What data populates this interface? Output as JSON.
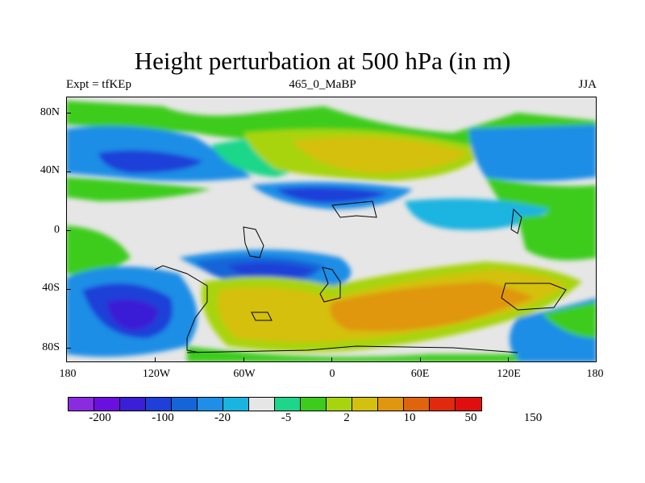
{
  "title": "Height perturbation at 500 hPa (in m)",
  "subtitle_left": "Expt = tfKEp",
  "subtitle_center": "465_0_MaBP",
  "subtitle_right": "JJA",
  "map": {
    "type": "filled-contour",
    "projection": "cylindrical-equidistant",
    "lon_range": [
      -180,
      180
    ],
    "lat_range": [
      -90,
      90
    ],
    "coastlines": true,
    "y_labels": [
      "80N",
      "40N",
      "0",
      "40S",
      "80S"
    ],
    "x_labels": [
      "180",
      "120W",
      "60W",
      "0",
      "60E",
      "120E",
      "180"
    ]
  },
  "colorbar": {
    "colors": [
      "#8a2be2",
      "#6a0fe0",
      "#3a1fd6",
      "#1e3fd8",
      "#1565d8",
      "#1e8ee6",
      "#1ab4e0",
      "#e6e6e6",
      "#1ed68a",
      "#3ccc1e",
      "#a8d40e",
      "#d4c00e",
      "#e0960e",
      "#e0640e",
      "#e02a0e",
      "#e00e0e"
    ],
    "labels": [
      "-200",
      "-100",
      "-20",
      "-5",
      "2",
      "10",
      "50",
      "150"
    ]
  }
}
